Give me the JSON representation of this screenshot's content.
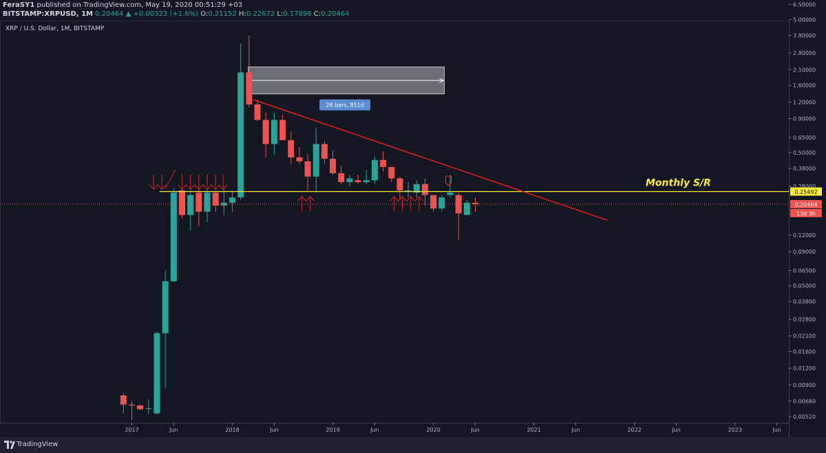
{
  "header": {
    "author": "FeraSY1",
    "published_text": "published on TradingView.com, May 19, 2020 00:51:29 +03",
    "symbol": "BITSTAMP:XRPUSD, 1M",
    "last": "0.20464",
    "change": "▲ +0.00323 (+1.6%)",
    "o_label": "O:",
    "o_value": "0.21152",
    "h_label": "H:",
    "h_value": "0.22672",
    "l_label": "L:",
    "l_value": "0.17898",
    "c_label": "C:",
    "c_value": "0.20464"
  },
  "footer": {
    "brand": "TradingView"
  },
  "colors": {
    "background": "#131722",
    "up": "#26a69a",
    "down": "#ef5350",
    "trendline": "#ff1e1e",
    "support": "#ffeb3b",
    "price_line": "#ef5350"
  },
  "chart_data": {
    "type": "candlestick",
    "title": "XRP / U.S. Dollar, 1M, BITSTAMP",
    "y_scale": "log",
    "ylim": [
      0.0046,
      7.0
    ],
    "y_ticks": [
      "6.50000",
      "5.00000",
      "3.80000",
      "2.80000",
      "2.10000",
      "1.60000",
      "1.20000",
      "0.90000",
      "0.65000",
      "0.50000",
      "0.38000",
      "0.28000",
      "0.12000",
      "0.09000",
      "0.06500",
      "0.05000",
      "0.03800",
      "0.02800",
      "0.02100",
      "0.01600",
      "0.01200",
      "0.00900",
      "0.00680",
      "0.00520"
    ],
    "x_ticks": [
      {
        "label": "2017",
        "month": 0
      },
      {
        "label": "Jun",
        "month": 5
      },
      {
        "label": "2018",
        "month": 12
      },
      {
        "label": "Jun",
        "month": 17
      },
      {
        "label": "2019",
        "month": 24
      },
      {
        "label": "Jun",
        "month": 29
      },
      {
        "label": "2020",
        "month": 36
      },
      {
        "label": "Jun",
        "month": 41
      },
      {
        "label": "2021",
        "month": 48
      },
      {
        "label": "Jun",
        "month": 53
      },
      {
        "label": "2022",
        "month": 60
      },
      {
        "label": "Jun",
        "month": 65
      },
      {
        "label": "2023",
        "month": 72
      },
      {
        "label": "Jun",
        "month": 77
      }
    ],
    "candles": [
      {
        "m": -1,
        "o": 0.0075,
        "h": 0.0078,
        "l": 0.0055,
        "c": 0.0064
      },
      {
        "m": 0,
        "o": 0.0064,
        "h": 0.0068,
        "l": 0.0049,
        "c": 0.0063
      },
      {
        "m": 1,
        "o": 0.0063,
        "h": 0.0064,
        "l": 0.0058,
        "c": 0.0059
      },
      {
        "m": 2,
        "o": 0.006,
        "h": 0.007,
        "l": 0.0054,
        "c": 0.006
      },
      {
        "m": 3,
        "o": 0.0055,
        "h": 0.0225,
        "l": 0.0054,
        "c": 0.022
      },
      {
        "m": 4,
        "o": 0.022,
        "h": 0.065,
        "l": 0.0085,
        "c": 0.054
      },
      {
        "m": 5,
        "o": 0.054,
        "h": 0.27,
        "l": 0.053,
        "c": 0.25
      },
      {
        "m": 6,
        "o": 0.26,
        "h": 0.28,
        "l": 0.16,
        "c": 0.17
      },
      {
        "m": 7,
        "o": 0.17,
        "h": 0.26,
        "l": 0.13,
        "c": 0.24
      },
      {
        "m": 8,
        "o": 0.25,
        "h": 0.28,
        "l": 0.14,
        "c": 0.18
      },
      {
        "m": 9,
        "o": 0.18,
        "h": 0.27,
        "l": 0.15,
        "c": 0.25
      },
      {
        "m": 10,
        "o": 0.25,
        "h": 0.26,
        "l": 0.18,
        "c": 0.2
      },
      {
        "m": 11,
        "o": 0.2,
        "h": 0.27,
        "l": 0.17,
        "c": 0.21
      },
      {
        "m": 12,
        "o": 0.21,
        "h": 0.26,
        "l": 0.18,
        "c": 0.23
      },
      {
        "m": 13,
        "o": 0.23,
        "h": 3.3,
        "l": 0.22,
        "c": 2.0
      },
      {
        "m": 14,
        "o": 2.0,
        "h": 3.8,
        "l": 1.1,
        "c": 1.15
      },
      {
        "m": 15,
        "o": 1.15,
        "h": 1.25,
        "l": 0.86,
        "c": 0.88
      },
      {
        "m": 16,
        "o": 0.88,
        "h": 1.0,
        "l": 0.46,
        "c": 0.58
      },
      {
        "m": 17,
        "o": 0.58,
        "h": 1.0,
        "l": 0.48,
        "c": 0.88
      },
      {
        "m": 18,
        "o": 0.88,
        "h": 0.97,
        "l": 0.62,
        "c": 0.62
      },
      {
        "m": 19,
        "o": 0.62,
        "h": 0.72,
        "l": 0.41,
        "c": 0.46
      },
      {
        "m": 20,
        "o": 0.46,
        "h": 0.55,
        "l": 0.41,
        "c": 0.43
      },
      {
        "m": 21,
        "o": 0.43,
        "h": 0.49,
        "l": 0.26,
        "c": 0.33
      },
      {
        "m": 22,
        "o": 0.33,
        "h": 0.77,
        "l": 0.25,
        "c": 0.58
      },
      {
        "m": 23,
        "o": 0.58,
        "h": 0.61,
        "l": 0.41,
        "c": 0.45
      },
      {
        "m": 24,
        "o": 0.45,
        "h": 0.52,
        "l": 0.34,
        "c": 0.35
      },
      {
        "m": 25,
        "o": 0.35,
        "h": 0.4,
        "l": 0.29,
        "c": 0.3
      },
      {
        "m": 26,
        "o": 0.3,
        "h": 0.34,
        "l": 0.28,
        "c": 0.32
      },
      {
        "m": 27,
        "o": 0.31,
        "h": 0.34,
        "l": 0.29,
        "c": 0.3
      },
      {
        "m": 28,
        "o": 0.3,
        "h": 0.37,
        "l": 0.29,
        "c": 0.31
      },
      {
        "m": 29,
        "o": 0.31,
        "h": 0.47,
        "l": 0.29,
        "c": 0.44
      },
      {
        "m": 30,
        "o": 0.44,
        "h": 0.51,
        "l": 0.36,
        "c": 0.39
      },
      {
        "m": 31,
        "o": 0.39,
        "h": 0.39,
        "l": 0.3,
        "c": 0.32
      },
      {
        "m": 32,
        "o": 0.32,
        "h": 0.33,
        "l": 0.22,
        "c": 0.26
      },
      {
        "m": 33,
        "o": 0.26,
        "h": 0.3,
        "l": 0.23,
        "c": 0.26
      },
      {
        "m": 34,
        "o": 0.25,
        "h": 0.31,
        "l": 0.23,
        "c": 0.29
      },
      {
        "m": 35,
        "o": 0.29,
        "h": 0.32,
        "l": 0.2,
        "c": 0.24
      },
      {
        "m": 36,
        "o": 0.24,
        "h": 0.24,
        "l": 0.18,
        "c": 0.19
      },
      {
        "m": 37,
        "o": 0.19,
        "h": 0.24,
        "l": 0.18,
        "c": 0.23
      },
      {
        "m": 38,
        "o": 0.24,
        "h": 0.34,
        "l": 0.23,
        "c": 0.25
      },
      {
        "m": 39,
        "o": 0.24,
        "h": 0.25,
        "l": 0.11,
        "c": 0.175
      },
      {
        "m": 40,
        "o": 0.17,
        "h": 0.22,
        "l": 0.17,
        "c": 0.21
      },
      {
        "m": 41,
        "o": 0.21,
        "h": 0.23,
        "l": 0.18,
        "c": 0.205
      }
    ],
    "annotations": {
      "label_monthly": "Monthly S/R",
      "support_level": 0.25492,
      "support_label": "0.25492",
      "current_price_label": "0.20464",
      "countdown_label": "13d 3h",
      "range_box": {
        "m_start": 13.9,
        "m_end": 37.3,
        "y_top": 2.2,
        "y_bottom": 1.38,
        "label": "28 bars, 851d"
      },
      "trendline": {
        "m1": 14.5,
        "y1": 1.25,
        "m2": 56.8,
        "y2": 0.155
      }
    }
  }
}
